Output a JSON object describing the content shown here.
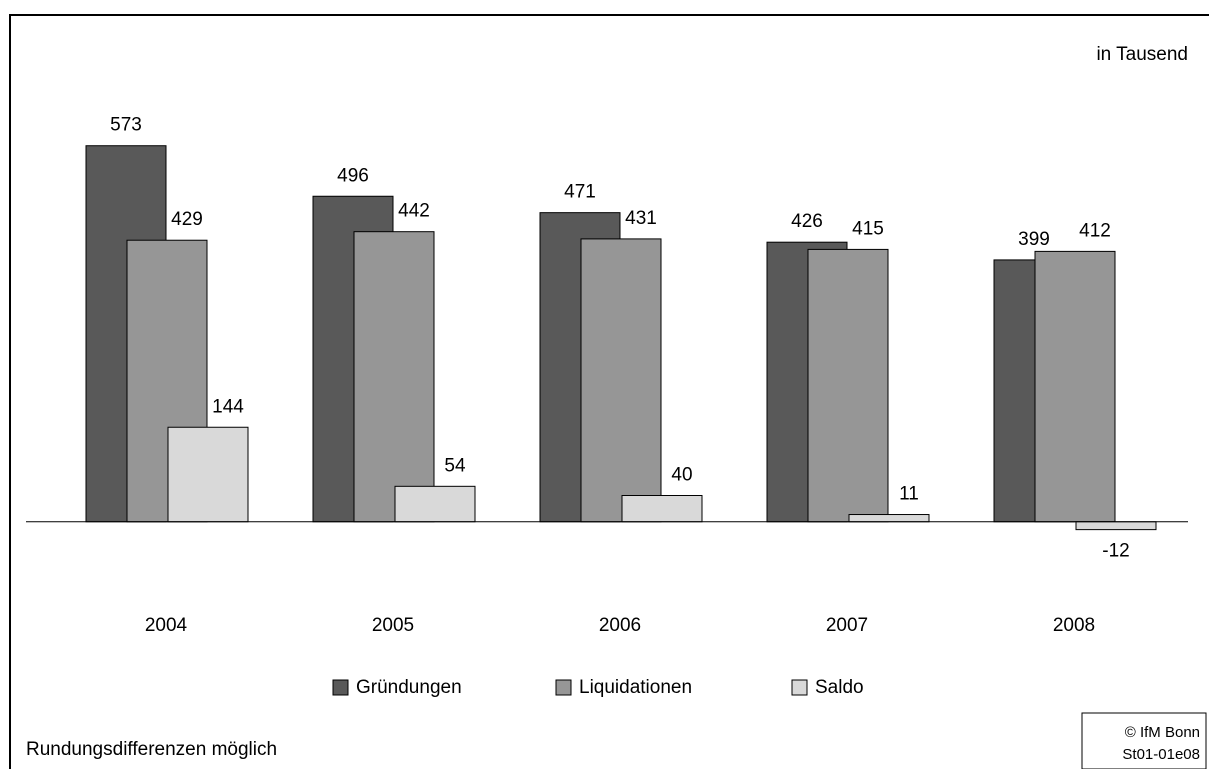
{
  "chart_data": {
    "type": "bar",
    "unit_note": "in Tausend",
    "categories": [
      "2004",
      "2005",
      "2006",
      "2007",
      "2008"
    ],
    "series": [
      {
        "name": "Gründungen",
        "color": "#595959",
        "values": [
          573,
          496,
          471,
          426,
          399
        ]
      },
      {
        "name": "Liquidationen",
        "color": "#969696",
        "values": [
          429,
          442,
          431,
          415,
          412
        ]
      },
      {
        "name": "Saldo",
        "color": "#d9d9d9",
        "values": [
          144,
          54,
          40,
          11,
          -12
        ]
      }
    ],
    "ylim": [
      -200,
      600
    ],
    "legend": "bottom",
    "footnote": "Rundungsdifferenzen möglich",
    "source": [
      "© IfM Bonn",
      "St01-01e08"
    ]
  }
}
